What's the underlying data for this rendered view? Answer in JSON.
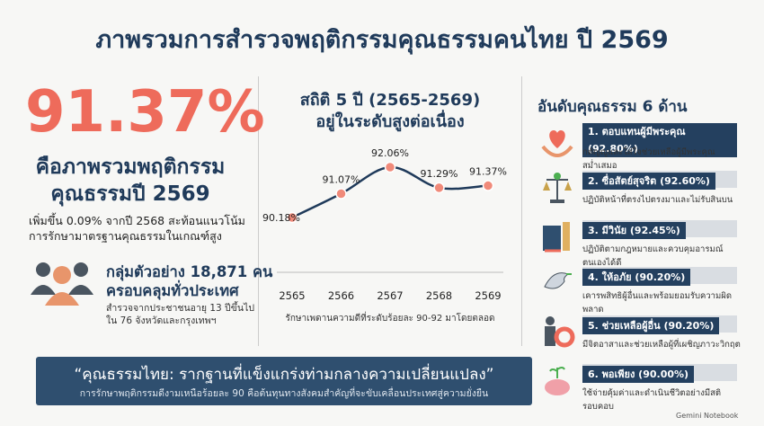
{
  "header": {
    "title": "ภาพรวมการสำรวจพฤติกรรมคุณธรรมคนไทย ปี 2569"
  },
  "summary": {
    "headline": "91.37%",
    "lines": [
      "คือภาพรวมพฤติกรรม",
      "คุณธรรมปี 2569"
    ],
    "description": [
      "เพิ่มขึ้น 0.09% จากปี 2568 สะท้อนแนวโน้ม",
      "การรักษามาตรฐานคุณธรรมในเกณฑ์สูง"
    ]
  },
  "sample": {
    "lines": [
      "กลุ่มตัวอย่าง 18,871 คน",
      "ครอบคลุมทั่วประเทศ"
    ],
    "details": [
      "สำรวจจากประชาชนอายุ 13 ปีขึ้นไป",
      "ใน 76 จังหวัดและกรุงเทพฯ"
    ]
  },
  "chart_data": {
    "type": "line",
    "title": [
      "สถิติ 5 ปี (2565-2569)",
      "อยู่ในระดับสูงต่อเนื่อง"
    ],
    "categories": [
      "2565",
      "2566",
      "2567",
      "2568",
      "2569"
    ],
    "values": [
      90.18,
      91.07,
      92.06,
      91.29,
      91.37
    ],
    "value_labels": [
      "90.18%",
      "91.07%",
      "92.06%",
      "91.29%",
      "91.37%"
    ],
    "color": "#1f3a5a",
    "marker_color": "#f08a7a",
    "note": "รักษาเพดานความดีที่ระดับร้อยละ 90-92 มาโดยตลอด"
  },
  "ranking": {
    "title": "อันดับคุณธรรม 6 ด้าน",
    "items": [
      {
        "label": "1. ตอบแทนผู้มีพระคุณ (92.80%)",
        "description": "กตัญญูและใส่ใจช่วยเหลือผู้มีพระคุณสม่ำเสมอ"
      },
      {
        "label": "2. ซื่อสัตย์สุจริต (92.60%)",
        "description": "ปฏิบัติหน้าที่ตรงไปตรงมาและไม่รับสินบน"
      },
      {
        "label": "3. มีวินัย (92.45%)",
        "description": "ปฏิบัติตามกฎหมายและควบคุมอารมณ์ตนเองได้ดี"
      },
      {
        "label": "4. ให้อภัย (90.20%)",
        "description": "เคารพสิทธิผู้อื่นและพร้อมยอมรับความผิดพลาด"
      },
      {
        "label": "5. ช่วยเหลือผู้อื่น (90.20%)",
        "description": "มีจิตอาสาและช่วยเหลือผู้ที่เผชิญภาวะวิกฤต"
      },
      {
        "label": "6. พอเพียง (90.00%)",
        "description": "ใช้จ่ายคุ้มค่าและดำเนินชีวิตอย่างมีสติรอบคอบ"
      }
    ]
  },
  "banner": {
    "quote": "“คุณธรรมไทย: รากฐานที่แข็งแกร่งท่ามกลางความเปลี่ยนแปลง”",
    "text": "การรักษาพฤติกรรมดีงามเหนือร้อยละ 90 คือต้นทุนทางสังคมสำคัญที่จะขับเคลื่อนประเทศสู่ความยั่งยืน"
  },
  "watermark": "Gemini Notebook"
}
